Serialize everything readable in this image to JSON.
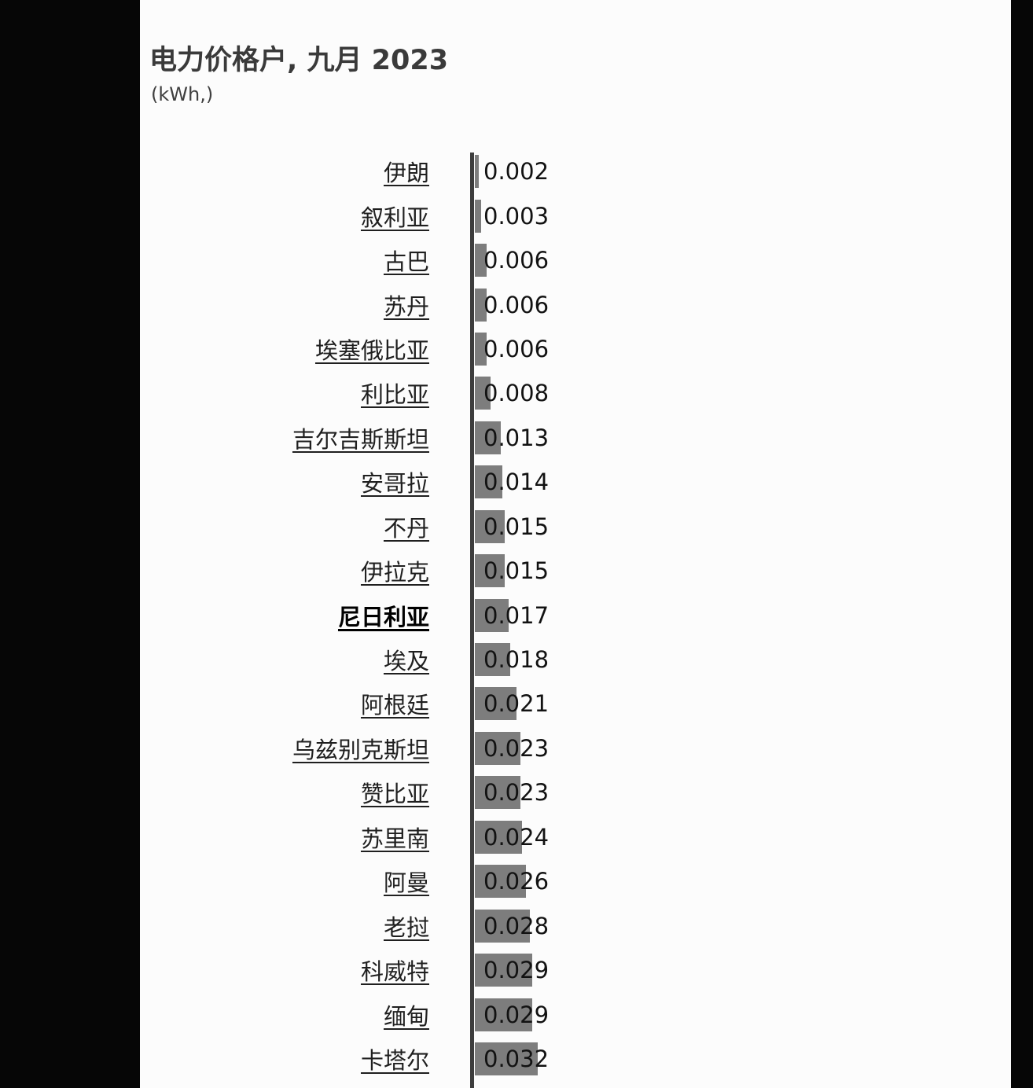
{
  "page": {
    "background": "#fcfcfc",
    "letterbox_color": "#060606"
  },
  "header": {
    "title": "电力价格户, 九月 2023",
    "subtitle": "(kWh,)"
  },
  "chart_data": {
    "type": "bar",
    "orientation": "horizontal",
    "title": "电力价格户, 九月 2023",
    "subtitle": "(kWh,)",
    "unit": "kWh",
    "categories": [
      "伊朗",
      "叙利亚",
      "古巴",
      "苏丹",
      "埃塞俄比亚",
      "利比亚",
      "吉尔吉斯斯坦",
      "安哥拉",
      "不丹",
      "伊拉克",
      "尼日利亚",
      "埃及",
      "阿根廷",
      "乌兹别克斯坦",
      "赞比亚",
      "苏里南",
      "阿曼",
      "老挝",
      "科威特",
      "缅甸",
      "卡塔尔"
    ],
    "values": [
      0.002,
      0.003,
      0.006,
      0.006,
      0.006,
      0.008,
      0.013,
      0.014,
      0.015,
      0.015,
      0.017,
      0.018,
      0.021,
      0.023,
      0.023,
      0.024,
      0.026,
      0.028,
      0.029,
      0.029,
      0.032
    ],
    "value_labels": [
      "0.002",
      "0.003",
      "0.006",
      "0.006",
      "0.006",
      "0.008",
      "0.013",
      "0.014",
      "0.015",
      "0.015",
      "0.017",
      "0.018",
      "0.021",
      "0.023",
      "0.023",
      "0.024",
      "0.026",
      "0.028",
      "0.029",
      "0.029",
      "0.032"
    ],
    "highlighted_category": "尼日利亚",
    "xlim": [
      0,
      0.032
    ],
    "bar_color": "#7d7d7d",
    "axis_color": "#3d3d3d",
    "grid": "off",
    "legend": "none"
  }
}
